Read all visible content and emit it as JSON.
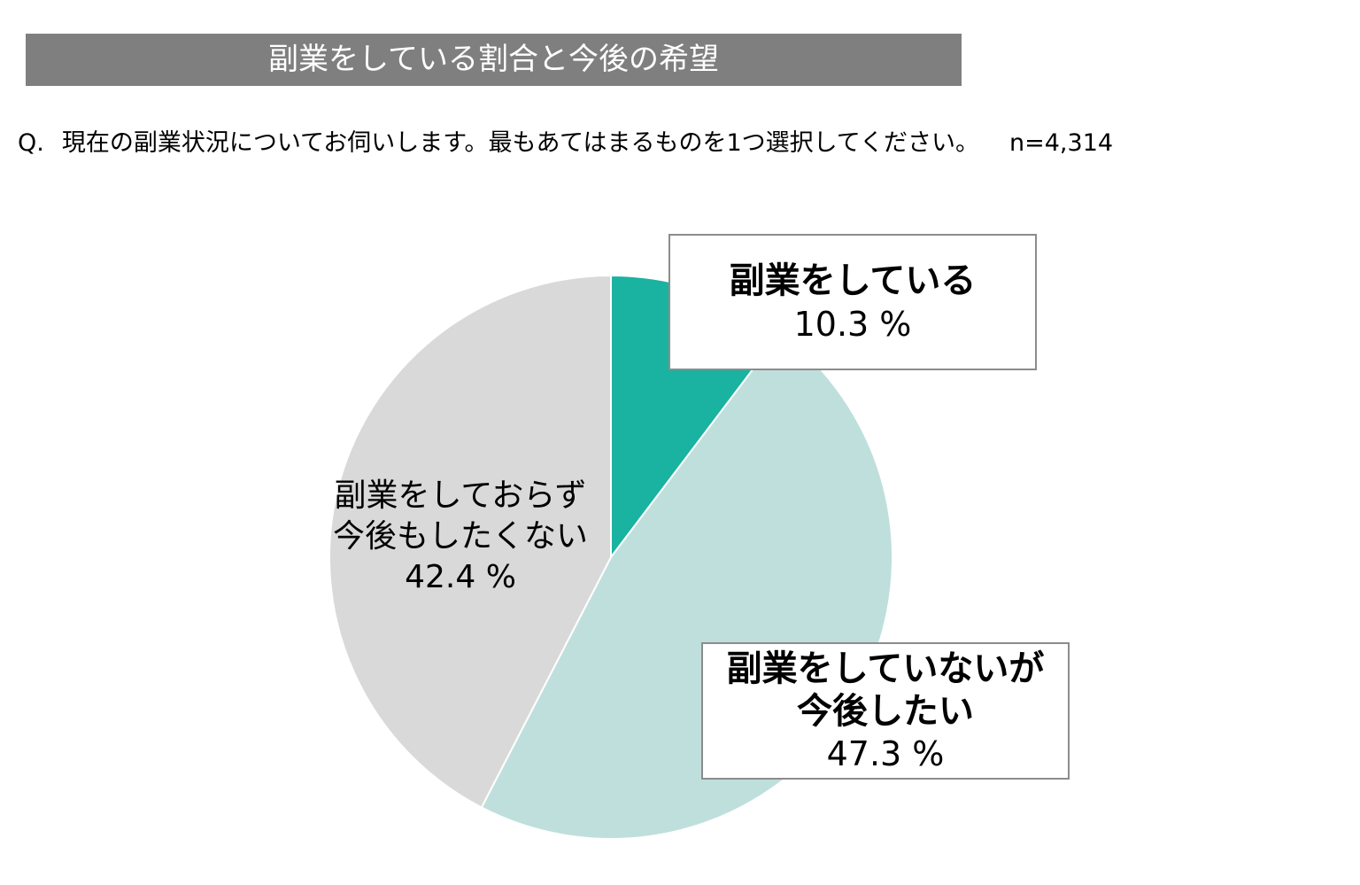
{
  "title": "副業をしている割合と今後の希望",
  "question": {
    "prefix": "Q.",
    "text": "現在の副業状況についてお伺いします。最もあてはまるものを1つ選択してください。",
    "sample": "n=4,314"
  },
  "chart_data": {
    "type": "pie",
    "start": "12 o'clock, clockwise",
    "unit": "%",
    "slices": [
      {
        "label_lines": [
          "副業をしている"
        ],
        "value": 10.3,
        "value_text": "10.3 %",
        "color": "#1ab2a0"
      },
      {
        "label_lines": [
          "副業をしていないが",
          "今後したい"
        ],
        "value": 47.3,
        "value_text": "47.3 %",
        "color": "#bfdfdc"
      },
      {
        "label_lines": [
          "副業をしておらず",
          "今後もしたくない"
        ],
        "value": 42.4,
        "value_text": "42.4 %",
        "color": "#d9d9d9"
      }
    ]
  }
}
